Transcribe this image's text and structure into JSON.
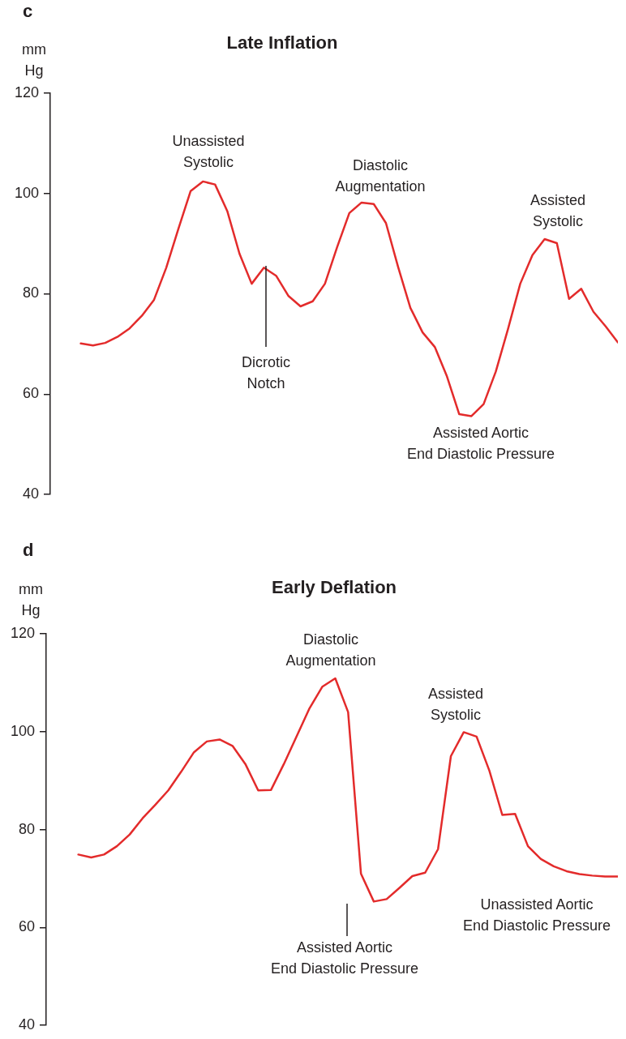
{
  "chart_data": [
    {
      "type": "line",
      "title": "Late Inflation",
      "ylabel": "mm Hg",
      "ylim": [
        40,
        120
      ],
      "yticks": [
        40,
        60,
        80,
        100,
        120
      ],
      "grid": false,
      "legend": false,
      "tick_labels": "y",
      "marker": "none",
      "line_style": "solid",
      "categories": [
        null,
        null,
        null,
        null,
        null,
        null,
        null,
        null,
        null,
        null,
        null,
        null,
        null,
        null,
        null,
        null,
        null,
        null,
        null,
        null,
        null,
        null,
        null,
        null,
        null,
        null,
        null,
        null,
        null,
        null,
        null,
        null,
        null,
        null,
        null,
        null,
        null,
        null,
        null,
        null,
        null,
        null,
        null,
        null,
        null
      ],
      "series": [
        {
          "color": "#e32b2b",
          "values": [
            70.1,
            69.7,
            70.2,
            71.4,
            73.1,
            75.6,
            78.8,
            85.2,
            93,
            100.5,
            102.4,
            101.8,
            96.5,
            88,
            82,
            85.2,
            83.6,
            79.6,
            77.5,
            78.5,
            82,
            89.3,
            96.1,
            98.2,
            97.9,
            94.1,
            85.3,
            77.2,
            72.3,
            69.4,
            63.5,
            56,
            55.6,
            58,
            64.5,
            73,
            82,
            87.7,
            90.9,
            90.1,
            79,
            81,
            76.4,
            73.5,
            70.3
          ]
        }
      ],
      "annotations": [
        "c",
        "Unassisted\nSystolic",
        "Dicrotic\nNotch",
        "Diastolic\nAugmentation",
        "Assisted\nSystolic",
        "Assisted Aortic\nEnd Diastolic Pressure"
      ]
    },
    {
      "type": "line",
      "title": "Early Deflation",
      "ylabel": "mm Hg",
      "ylim": [
        40,
        120
      ],
      "yticks": [
        40,
        60,
        80,
        100,
        120
      ],
      "grid": false,
      "legend": false,
      "tick_labels": "y",
      "marker": "none",
      "line_style": "solid",
      "categories": [
        null,
        null,
        null,
        null,
        null,
        null,
        null,
        null,
        null,
        null,
        null,
        null,
        null,
        null,
        null,
        null,
        null,
        null,
        null,
        null,
        null,
        null,
        null,
        null,
        null,
        null,
        null,
        null,
        null,
        null,
        null,
        null,
        null,
        null,
        null,
        null,
        null,
        null,
        null,
        null,
        null,
        null,
        null
      ],
      "series": [
        {
          "color": "#e32b2b",
          "values": [
            74.9,
            74.3,
            74.9,
            76.6,
            79,
            82.3,
            85.1,
            88,
            91.8,
            95.8,
            98,
            98.4,
            97.1,
            93.4,
            88,
            88.1,
            93.4,
            99.1,
            104.8,
            109.2,
            110.9,
            104,
            71,
            65.3,
            65.8,
            68.1,
            70.5,
            71.2,
            76,
            95,
            99.9,
            99,
            92,
            83,
            83.2,
            76.6,
            74,
            72.5,
            71.5,
            70.9,
            70.6,
            70.4,
            70.4
          ]
        }
      ],
      "annotations": [
        "d",
        "Diastolic\nAugmentation",
        "Assisted\nSystolic",
        "Assisted Aortic\nEnd Diastolic Pressure",
        "Unassisted Aortic\nEnd Diastolic Pressure"
      ]
    }
  ]
}
